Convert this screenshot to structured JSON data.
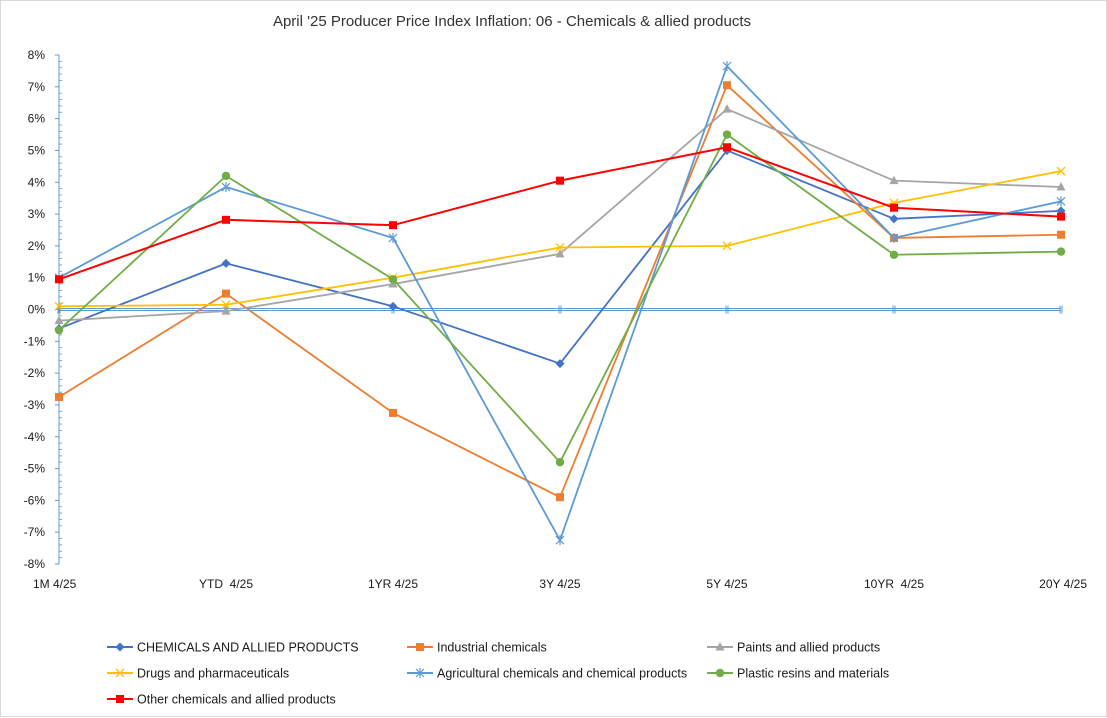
{
  "chart_data": {
    "type": "line",
    "title": "April '25 Producer Price Index Inflation: 06 - Chemicals & allied products",
    "xlabel": "",
    "ylabel": "",
    "categories": [
      "1M 4/25",
      "YTD  4/25",
      "1YR 4/25",
      "3Y 4/25",
      "5Y 4/25",
      "10YR  4/25",
      "20Y 4/25"
    ],
    "ylim": [
      -8,
      8
    ],
    "yticks": [
      -8,
      -7,
      -6,
      -5,
      -4,
      -3,
      -2,
      -1,
      0,
      1,
      2,
      3,
      4,
      5,
      6,
      7,
      8
    ],
    "ytick_labels": [
      "-8%",
      "-7%",
      "-6%",
      "-5%",
      "-4%",
      "-3%",
      "-2%",
      "-1%",
      "0%",
      "1%",
      "2%",
      "3%",
      "4%",
      "5%",
      "6%",
      "7%",
      "8%"
    ],
    "grid": false,
    "legend_position": "bottom",
    "series": [
      {
        "name": "CHEMICALS AND ALLIED PRODUCTS",
        "color": "#4472C4",
        "marker": "diamond",
        "values": [
          -0.6,
          1.45,
          0.1,
          -1.7,
          5.0,
          2.85,
          3.1
        ]
      },
      {
        "name": "Industrial chemicals",
        "color": "#ED7D31",
        "marker": "square",
        "values": [
          -2.75,
          0.5,
          -3.25,
          -5.9,
          7.05,
          2.25,
          2.35
        ]
      },
      {
        "name": "Paints and allied products",
        "color": "#A5A5A5",
        "marker": "triangle",
        "values": [
          -0.35,
          -0.05,
          0.8,
          1.75,
          6.3,
          4.05,
          3.85
        ]
      },
      {
        "name": "Drugs and pharmaceuticals",
        "color": "#FFC000",
        "marker": "x",
        "values": [
          0.1,
          0.15,
          1.0,
          1.95,
          2.0,
          3.35,
          4.35
        ]
      },
      {
        "name": "Agricultural chemicals and chemical products",
        "color": "#5B9BD5",
        "marker": "star",
        "values": [
          1.0,
          3.85,
          2.25,
          -7.25,
          7.65,
          2.25,
          3.4
        ]
      },
      {
        "name": "Plastic resins and materials",
        "color": "#70AD47",
        "marker": "circle",
        "values": [
          -0.65,
          4.2,
          0.95,
          -4.8,
          5.5,
          1.72,
          1.82
        ]
      },
      {
        "name": "Other chemicals and allied products",
        "color": "#FF0000",
        "marker": "square",
        "values": [
          0.95,
          2.82,
          2.65,
          4.05,
          5.1,
          3.2,
          2.92
        ]
      }
    ]
  }
}
